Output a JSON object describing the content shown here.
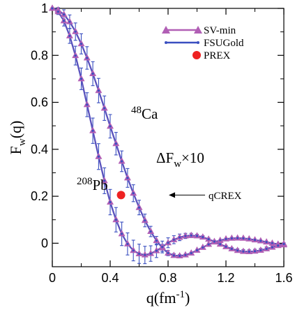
{
  "chart_data": {
    "type": "line",
    "xlabel_main": "q",
    "xlabel_unit_base": "(fm",
    "xlabel_unit_exp": "-1",
    "xlabel_unit_close": ")",
    "ylabel_main": "F",
    "ylabel_sub": "w",
    "ylabel_arg": "(q)",
    "xlim": [
      0,
      1.6
    ],
    "ylim": [
      -0.1,
      1.0
    ],
    "x_ticks": [
      0,
      0.4,
      0.8,
      1.2,
      1.6
    ],
    "x_tick_labels": [
      "0",
      "0.4",
      "0.8",
      "1.2",
      "1.6"
    ],
    "y_ticks": [
      0,
      0.2,
      0.4,
      0.6,
      0.8,
      1.0
    ],
    "y_tick_labels": [
      "0",
      "0.2",
      "0.4",
      "0.6",
      "0.8",
      "1"
    ],
    "grid": false,
    "legend_position": "top-right",
    "legend": [
      {
        "label": "SV-min",
        "color": "#b15fb5",
        "marker": "triangle"
      },
      {
        "label": "FSUGold",
        "color": "#3a4fc0",
        "marker": "dot"
      },
      {
        "label": "PREX",
        "color": "#ee2222",
        "marker": "circle"
      }
    ],
    "annotations": {
      "ca_sup": "48",
      "ca_label": "Ca",
      "pb_sup": "208",
      "pb_label": "Pb",
      "delta_label": "ΔF",
      "delta_sub": "w",
      "delta_mult": "×10",
      "qcrex_label": "qCREX"
    },
    "curves": [
      {
        "name": "48Ca",
        "x": [
          0,
          0.04,
          0.08,
          0.12,
          0.16,
          0.2,
          0.24,
          0.28,
          0.32,
          0.36,
          0.4,
          0.44,
          0.48,
          0.52,
          0.56,
          0.6,
          0.64,
          0.68,
          0.72,
          0.76,
          0.8,
          0.84,
          0.88,
          0.92,
          0.96,
          1.0,
          1.04,
          1.08,
          1.12,
          1.16,
          1.2,
          1.24,
          1.28,
          1.32,
          1.36,
          1.4,
          1.44,
          1.48,
          1.52,
          1.56,
          1.6
        ],
        "y": [
          1.0,
          0.993,
          0.974,
          0.943,
          0.901,
          0.849,
          0.789,
          0.722,
          0.65,
          0.575,
          0.498,
          0.424,
          0.349,
          0.278,
          0.213,
          0.152,
          0.097,
          0.05,
          0.011,
          -0.02,
          -0.042,
          -0.052,
          -0.054,
          -0.05,
          -0.042,
          -0.03,
          -0.018,
          -0.005,
          0.005,
          0.012,
          0.018,
          0.021,
          0.022,
          0.021,
          0.018,
          0.014,
          0.01,
          0.005,
          0.0,
          -0.004,
          -0.007
        ],
        "err": [
          0.0,
          0.01,
          0.02,
          0.029,
          0.037,
          0.043,
          0.048,
          0.051,
          0.052,
          0.052,
          0.05,
          0.048,
          0.044,
          0.04,
          0.036,
          0.031,
          0.027,
          0.022,
          0.018,
          0.015,
          0.011,
          0.008,
          0.006,
          0.004,
          0.003,
          0.0,
          0.0,
          0.0,
          0.0,
          0.0,
          0.0,
          0.0,
          0.0,
          0.0,
          0.0,
          0.0,
          0.0,
          0.0,
          0.0,
          0.0,
          0.0
        ]
      },
      {
        "name": "208Pb",
        "x": [
          0,
          0.04,
          0.08,
          0.12,
          0.16,
          0.2,
          0.24,
          0.28,
          0.32,
          0.36,
          0.4,
          0.44,
          0.48,
          0.52,
          0.56,
          0.6,
          0.64,
          0.68,
          0.72,
          0.76,
          0.8,
          0.84,
          0.88,
          0.92,
          0.96,
          1.0,
          1.04,
          1.08,
          1.12,
          1.16,
          1.2,
          1.24,
          1.28,
          1.32,
          1.36,
          1.4,
          1.44,
          1.48,
          1.52,
          1.56,
          1.6
        ],
        "y": [
          1.0,
          0.986,
          0.947,
          0.883,
          0.799,
          0.7,
          0.59,
          0.479,
          0.369,
          0.266,
          0.175,
          0.1,
          0.04,
          -0.003,
          -0.031,
          -0.045,
          -0.05,
          -0.044,
          -0.032,
          -0.016,
          0.002,
          0.015,
          0.025,
          0.031,
          0.033,
          0.031,
          0.026,
          0.017,
          0.007,
          -0.004,
          -0.015,
          -0.024,
          -0.031,
          -0.035,
          -0.036,
          -0.034,
          -0.03,
          -0.024,
          -0.017,
          -0.01,
          -0.003
        ],
        "err": [
          0.0,
          0.012,
          0.022,
          0.032,
          0.04,
          0.046,
          0.051,
          0.054,
          0.055,
          0.055,
          0.054,
          0.052,
          0.05,
          0.047,
          0.044,
          0.041,
          0.037,
          0.033,
          0.029,
          0.025,
          0.021,
          0.017,
          0.014,
          0.011,
          0.009,
          0.007,
          0.006,
          0.005,
          0.005,
          0.005,
          0.006,
          0.006,
          0.007,
          0.008,
          0.008,
          0.008,
          0.008,
          0.008,
          0.007,
          0.006,
          0.005
        ]
      }
    ],
    "prex_point": {
      "x": 0.475,
      "y": 0.205
    },
    "qcrex_marker": {
      "x": 0.805,
      "y": 0.205
    }
  }
}
